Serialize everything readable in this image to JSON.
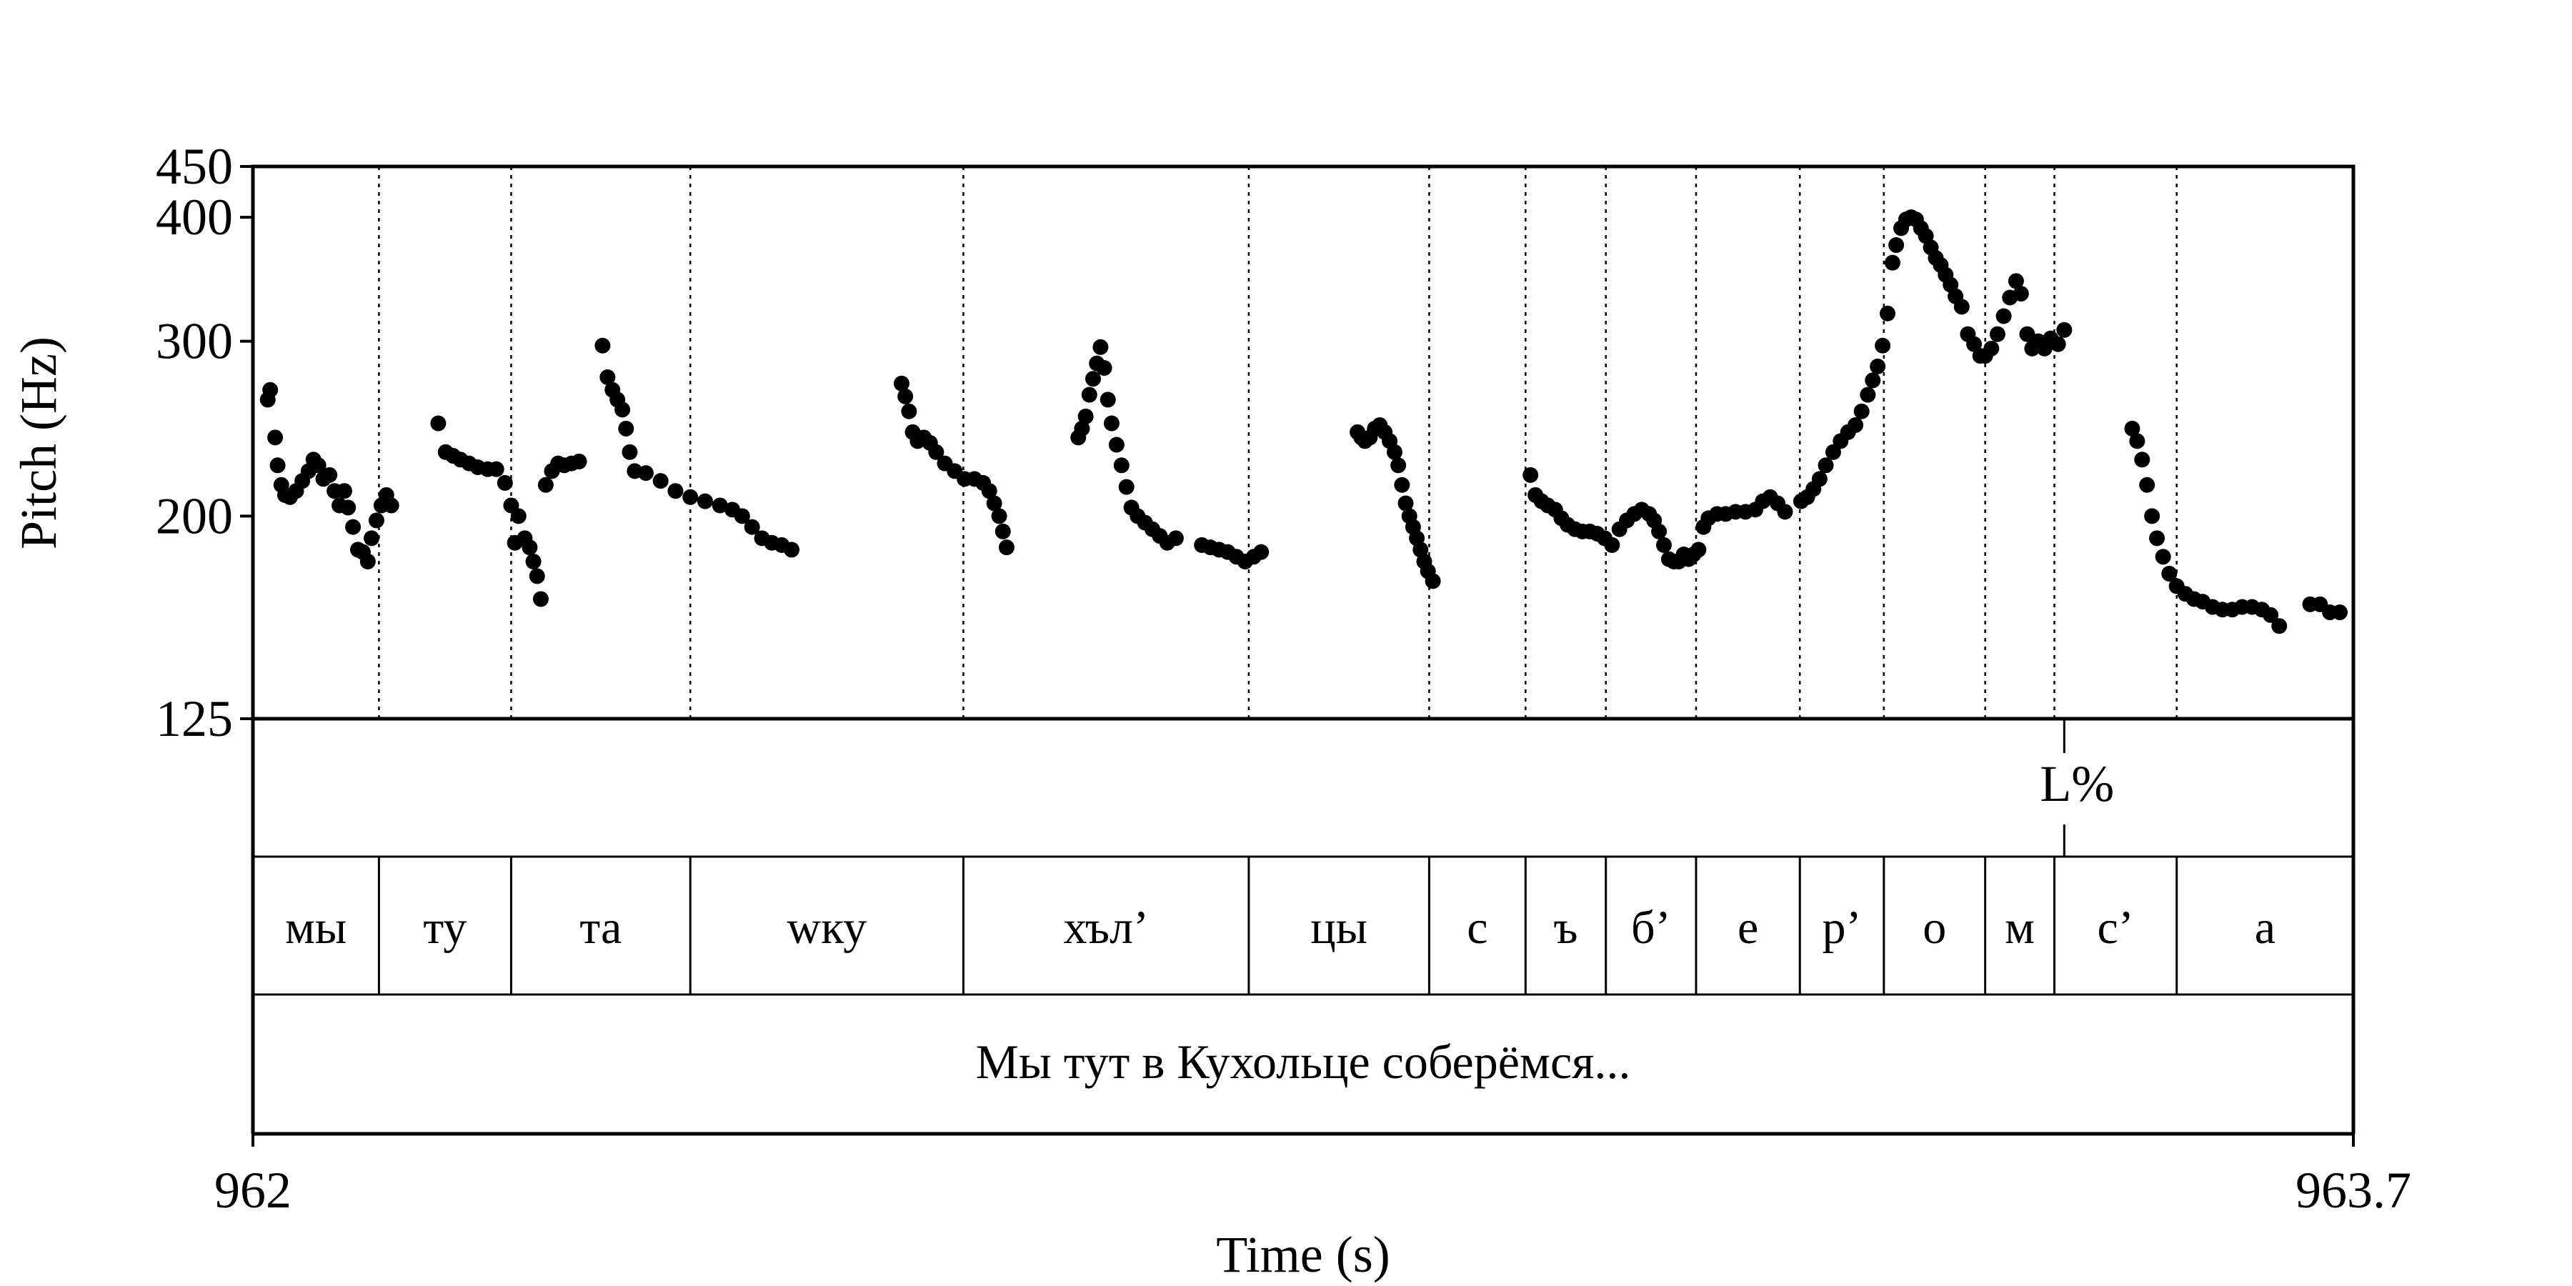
{
  "chart_data": {
    "type": "scatter",
    "xlabel": "Time (s)",
    "ylabel": "Pitch (Hz)",
    "x_range": [
      962,
      963.7
    ],
    "x_tick_labels": [
      "962",
      "963.7"
    ],
    "ylim": [
      125,
      450
    ],
    "y_scale": "log",
    "y_ticks": [
      125,
      200,
      300,
      400,
      450
    ],
    "y_tick_labels": [
      "125",
      "200",
      "300",
      "400",
      "450"
    ],
    "grid": false,
    "tone_tier": [
      {
        "label": "L%",
        "t": 963.466
      }
    ],
    "segment_tier": [
      {
        "label": "мы",
        "start": 962.0,
        "end": 962.102
      },
      {
        "label": "ту",
        "start": 962.102,
        "end": 962.209
      },
      {
        "label": "та",
        "start": 962.209,
        "end": 962.354
      },
      {
        "label": "wку",
        "start": 962.354,
        "end": 962.575
      },
      {
        "label": "хъл’",
        "start": 962.575,
        "end": 962.806
      },
      {
        "label": "цы",
        "start": 962.806,
        "end": 962.952
      },
      {
        "label": "с",
        "start": 962.952,
        "end": 963.03
      },
      {
        "label": "ъ",
        "start": 963.03,
        "end": 963.095
      },
      {
        "label": "б’",
        "start": 963.095,
        "end": 963.168
      },
      {
        "label": "е",
        "start": 963.168,
        "end": 963.252
      },
      {
        "label": "р’",
        "start": 963.252,
        "end": 963.32
      },
      {
        "label": "о",
        "start": 963.32,
        "end": 963.402
      },
      {
        "label": "м",
        "start": 963.402,
        "end": 963.458
      },
      {
        "label": "с’",
        "start": 963.458,
        "end": 963.557
      },
      {
        "label": "а",
        "start": 963.557,
        "end": 963.7
      }
    ],
    "sentence_tier": [
      {
        "label": "Мы тут в Кухольце соберёмся...",
        "start": 962.0,
        "end": 963.7
      }
    ],
    "series": [
      {
        "values": [
          [
            962.012,
            262
          ],
          [
            962.014,
            268
          ],
          [
            962.018,
            240
          ],
          [
            962.02,
            225
          ],
          [
            962.023,
            215
          ],
          [
            962.026,
            210
          ],
          [
            962.03,
            209
          ],
          [
            962.035,
            212
          ],
          [
            962.04,
            217
          ],
          [
            962.045,
            222
          ],
          [
            962.049,
            228
          ],
          [
            962.053,
            225
          ],
          [
            962.057,
            218
          ],
          [
            962.062,
            220
          ],
          [
            962.066,
            212
          ],
          [
            962.07,
            205
          ],
          [
            962.074,
            212
          ],
          [
            962.077,
            204
          ],
          [
            962.081,
            195
          ],
          [
            962.085,
            185
          ],
          [
            962.089,
            184
          ],
          [
            962.093,
            180
          ],
          [
            962.096,
            190
          ],
          [
            962.1,
            198
          ],
          [
            962.104,
            205
          ],
          [
            962.108,
            210
          ],
          [
            962.112,
            205
          ],
          [
            962.15,
            248
          ],
          [
            962.156,
            232
          ],
          [
            962.162,
            230
          ],
          [
            962.168,
            228
          ],
          [
            962.175,
            226
          ],
          [
            962.182,
            224
          ],
          [
            962.19,
            223
          ],
          [
            962.197,
            223
          ],
          [
            962.204,
            216
          ],
          [
            962.209,
            205
          ],
          [
            962.212,
            188
          ],
          [
            962.215,
            200
          ],
          [
            962.22,
            190
          ],
          [
            962.224,
            186
          ],
          [
            962.227,
            180
          ],
          [
            962.23,
            174
          ],
          [
            962.233,
            165
          ],
          [
            962.237,
            215
          ],
          [
            962.242,
            222
          ],
          [
            962.247,
            226
          ],
          [
            962.252,
            225
          ],
          [
            962.258,
            226
          ],
          [
            962.264,
            227
          ],
          [
            962.283,
            297
          ],
          [
            962.287,
            276
          ],
          [
            962.291,
            268
          ],
          [
            962.295,
            262
          ],
          [
            962.299,
            256
          ],
          [
            962.302,
            245
          ],
          [
            962.305,
            232
          ],
          [
            962.309,
            222
          ],
          [
            962.318,
            221
          ],
          [
            962.33,
            217
          ],
          [
            962.342,
            212
          ],
          [
            962.354,
            209
          ],
          [
            962.366,
            207
          ],
          [
            962.378,
            205
          ],
          [
            962.388,
            203
          ],
          [
            962.396,
            200
          ],
          [
            962.404,
            195
          ],
          [
            962.412,
            190
          ],
          [
            962.42,
            188
          ],
          [
            962.428,
            187
          ],
          [
            962.436,
            185
          ],
          [
            962.525,
            272
          ],
          [
            962.528,
            264
          ],
          [
            962.531,
            255
          ],
          [
            962.534,
            243
          ],
          [
            962.538,
            238
          ],
          [
            962.543,
            240
          ],
          [
            962.548,
            237
          ],
          [
            962.553,
            232
          ],
          [
            962.56,
            226
          ],
          [
            962.568,
            222
          ],
          [
            962.576,
            218
          ],
          [
            962.584,
            218
          ],
          [
            962.591,
            216
          ],
          [
            962.596,
            212
          ],
          [
            962.6,
            206
          ],
          [
            962.604,
            200
          ],
          [
            962.607,
            193
          ],
          [
            962.61,
            186
          ],
          [
            962.668,
            240
          ],
          [
            962.671,
            245
          ],
          [
            962.674,
            252
          ],
          [
            962.677,
            265
          ],
          [
            962.68,
            275
          ],
          [
            962.683,
            285
          ],
          [
            962.686,
            296
          ],
          [
            962.689,
            282
          ],
          [
            962.692,
            262
          ],
          [
            962.695,
            248
          ],
          [
            962.699,
            236
          ],
          [
            962.703,
            225
          ],
          [
            962.707,
            214
          ],
          [
            962.711,
            204
          ],
          [
            962.716,
            200
          ],
          [
            962.722,
            197
          ],
          [
            962.728,
            194
          ],
          [
            962.734,
            191
          ],
          [
            962.74,
            188
          ],
          [
            962.747,
            190
          ],
          [
            962.768,
            187
          ],
          [
            962.775,
            186
          ],
          [
            962.782,
            185
          ],
          [
            962.789,
            184
          ],
          [
            962.796,
            182
          ],
          [
            962.803,
            180
          ],
          [
            962.81,
            182
          ],
          [
            962.816,
            184
          ],
          [
            962.894,
            243
          ],
          [
            962.897,
            240
          ],
          [
            962.9,
            238
          ],
          [
            962.904,
            240
          ],
          [
            962.908,
            245
          ],
          [
            962.912,
            247
          ],
          [
            962.916,
            243
          ],
          [
            962.92,
            238
          ],
          [
            962.924,
            232
          ],
          [
            962.927,
            225
          ],
          [
            962.93,
            215
          ],
          [
            962.933,
            206
          ],
          [
            962.936,
            200
          ],
          [
            962.939,
            195
          ],
          [
            962.942,
            190
          ],
          [
            962.945,
            185
          ],
          [
            962.948,
            180
          ],
          [
            962.951,
            176
          ],
          [
            962.955,
            172
          ],
          [
            963.034,
            220
          ],
          [
            963.038,
            210
          ],
          [
            963.043,
            207
          ],
          [
            963.048,
            205
          ],
          [
            963.054,
            203
          ],
          [
            963.059,
            199
          ],
          [
            963.064,
            196
          ],
          [
            963.07,
            194
          ],
          [
            963.076,
            193
          ],
          [
            963.082,
            193
          ],
          [
            963.088,
            192
          ],
          [
            963.094,
            190
          ],
          [
            963.1,
            187
          ],
          [
            963.106,
            194
          ],
          [
            963.112,
            198
          ],
          [
            963.118,
            201
          ],
          [
            963.124,
            203
          ],
          [
            963.13,
            201
          ],
          [
            963.134,
            198
          ],
          [
            963.138,
            193
          ],
          [
            963.142,
            187
          ],
          [
            963.146,
            181
          ],
          [
            963.15,
            180
          ],
          [
            963.154,
            180
          ],
          [
            963.158,
            183
          ],
          [
            963.162,
            181
          ],
          [
            963.166,
            183
          ],
          [
            963.17,
            185
          ],
          [
            963.174,
            195
          ],
          [
            963.178,
            199
          ],
          [
            963.185,
            201
          ],
          [
            963.192,
            201
          ],
          [
            963.2,
            202
          ],
          [
            963.208,
            202
          ],
          [
            963.216,
            203
          ],
          [
            963.222,
            207
          ],
          [
            963.228,
            209
          ],
          [
            963.234,
            206
          ],
          [
            963.24,
            202
          ],
          [
            963.253,
            207
          ],
          [
            963.258,
            209
          ],
          [
            963.263,
            213
          ],
          [
            963.268,
            218
          ],
          [
            963.273,
            225
          ],
          [
            963.279,
            232
          ],
          [
            963.285,
            238
          ],
          [
            963.291,
            243
          ],
          [
            963.297,
            247
          ],
          [
            963.302,
            255
          ],
          [
            963.307,
            265
          ],
          [
            963.311,
            274
          ],
          [
            963.315,
            283
          ],
          [
            963.319,
            297
          ],
          [
            963.323,
            320
          ],
          [
            963.327,
            360
          ],
          [
            963.33,
            375
          ],
          [
            963.334,
            390
          ],
          [
            963.338,
            398
          ],
          [
            963.342,
            400
          ],
          [
            963.346,
            398
          ],
          [
            963.35,
            390
          ],
          [
            963.354,
            383
          ],
          [
            963.358,
            373
          ],
          [
            963.362,
            364
          ],
          [
            963.366,
            358
          ],
          [
            963.37,
            350
          ],
          [
            963.374,
            342
          ],
          [
            963.378,
            333
          ],
          [
            963.383,
            325
          ],
          [
            963.388,
            305
          ],
          [
            963.393,
            298
          ],
          [
            963.398,
            290
          ],
          [
            963.402,
            290
          ],
          [
            963.407,
            295
          ],
          [
            963.412,
            305
          ],
          [
            963.417,
            318
          ],
          [
            963.422,
            332
          ],
          [
            963.427,
            345
          ],
          [
            963.431,
            335
          ],
          [
            963.436,
            305
          ],
          [
            963.44,
            295
          ],
          [
            963.445,
            300
          ],
          [
            963.45,
            295
          ],
          [
            963.455,
            302
          ],
          [
            963.461,
            298
          ],
          [
            963.466,
            308
          ],
          [
            963.521,
            245
          ],
          [
            963.525,
            238
          ],
          [
            963.529,
            228
          ],
          [
            963.533,
            215
          ],
          [
            963.537,
            200
          ],
          [
            963.541,
            190
          ],
          [
            963.546,
            182
          ],
          [
            963.551,
            175
          ],
          [
            963.557,
            170
          ],
          [
            963.564,
            167
          ],
          [
            963.571,
            165
          ],
          [
            963.578,
            164
          ],
          [
            963.586,
            162
          ],
          [
            963.594,
            161
          ],
          [
            963.602,
            161
          ],
          [
            963.61,
            162
          ],
          [
            963.618,
            162
          ],
          [
            963.626,
            161
          ],
          [
            963.633,
            159
          ],
          [
            963.64,
            155
          ],
          [
            963.665,
            163
          ],
          [
            963.673,
            163
          ],
          [
            963.681,
            160
          ],
          [
            963.689,
            160
          ]
        ]
      }
    ]
  }
}
